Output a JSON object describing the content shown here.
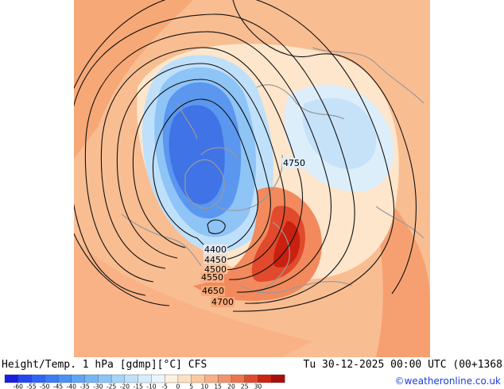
{
  "footer": {
    "title": "Height/Temp. 1 hPa [gdmp][°C] CFS",
    "valid_time": "Tu 30-12-2025 00:00 UTC (00+1368",
    "credit": "©weatheronline.co.uk"
  },
  "map": {
    "contour_labels": [
      "4400",
      "4450",
      "4500",
      "4550",
      "4650",
      "4700",
      "4750"
    ]
  },
  "colorbar": {
    "ticks": [
      "-60",
      "-55",
      "-50",
      "-45",
      "-40",
      "-35",
      "-30",
      "-25",
      "-20",
      "-15",
      "-10",
      "-5",
      "0",
      "5",
      "10",
      "15",
      "20",
      "25",
      "30"
    ],
    "colors": [
      "#1a1ee0",
      "#2448ef",
      "#2f65f5",
      "#3b7cf6",
      "#4a92f4",
      "#5ea6f4",
      "#74b6f5",
      "#8cc6f7",
      "#a5d4f8",
      "#bfe1fa",
      "#d8ecfb",
      "#ecf5fc",
      "#fdf0dc",
      "#fde0c0",
      "#fbc9a0",
      "#f8b086",
      "#f2946a",
      "#ec744d",
      "#e24a2d",
      "#cc2415",
      "#a80f0c"
    ]
  }
}
